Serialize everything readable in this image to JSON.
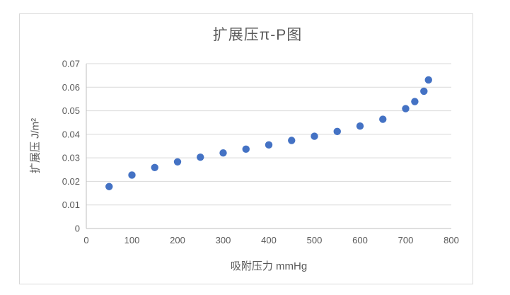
{
  "chart_data": {
    "type": "scatter",
    "title": "扩展压π-P图",
    "xlabel": "吸附压力 mmHg",
    "ylabel": "扩展压 J/m²",
    "xlim": [
      0,
      800
    ],
    "ylim": [
      0,
      0.07
    ],
    "x_ticks": [
      0,
      100,
      200,
      300,
      400,
      500,
      600,
      700,
      800
    ],
    "x_tick_labels": [
      "0",
      "100",
      "200",
      "300",
      "400",
      "500",
      "600",
      "700",
      "800"
    ],
    "y_ticks": [
      0,
      0.01,
      0.02,
      0.03,
      0.04,
      0.05,
      0.06,
      0.07
    ],
    "y_tick_labels": [
      "0",
      "0.01",
      "0.02",
      "0.03",
      "0.04",
      "0.05",
      "0.06",
      "0.07"
    ],
    "grid": "horizontal",
    "legend": "none",
    "series": [
      {
        "name": "扩展压",
        "points": [
          [
            50,
            0.0178
          ],
          [
            100,
            0.0227
          ],
          [
            150,
            0.0259
          ],
          [
            200,
            0.0283
          ],
          [
            250,
            0.0303
          ],
          [
            300,
            0.0321
          ],
          [
            350,
            0.0337
          ],
          [
            400,
            0.0355
          ],
          [
            450,
            0.0374
          ],
          [
            500,
            0.0392
          ],
          [
            550,
            0.0412
          ],
          [
            600,
            0.0435
          ],
          [
            650,
            0.0464
          ],
          [
            700,
            0.0509
          ],
          [
            720,
            0.0539
          ],
          [
            740,
            0.0583
          ],
          [
            750,
            0.0631
          ]
        ]
      }
    ],
    "colors": {
      "marker": "#4472C4",
      "text": "#595959",
      "gridline": "#D9D9D9",
      "axis": "#BFBFBF",
      "chart_border": "#D9D9D9",
      "background": "#FFFFFF"
    }
  }
}
